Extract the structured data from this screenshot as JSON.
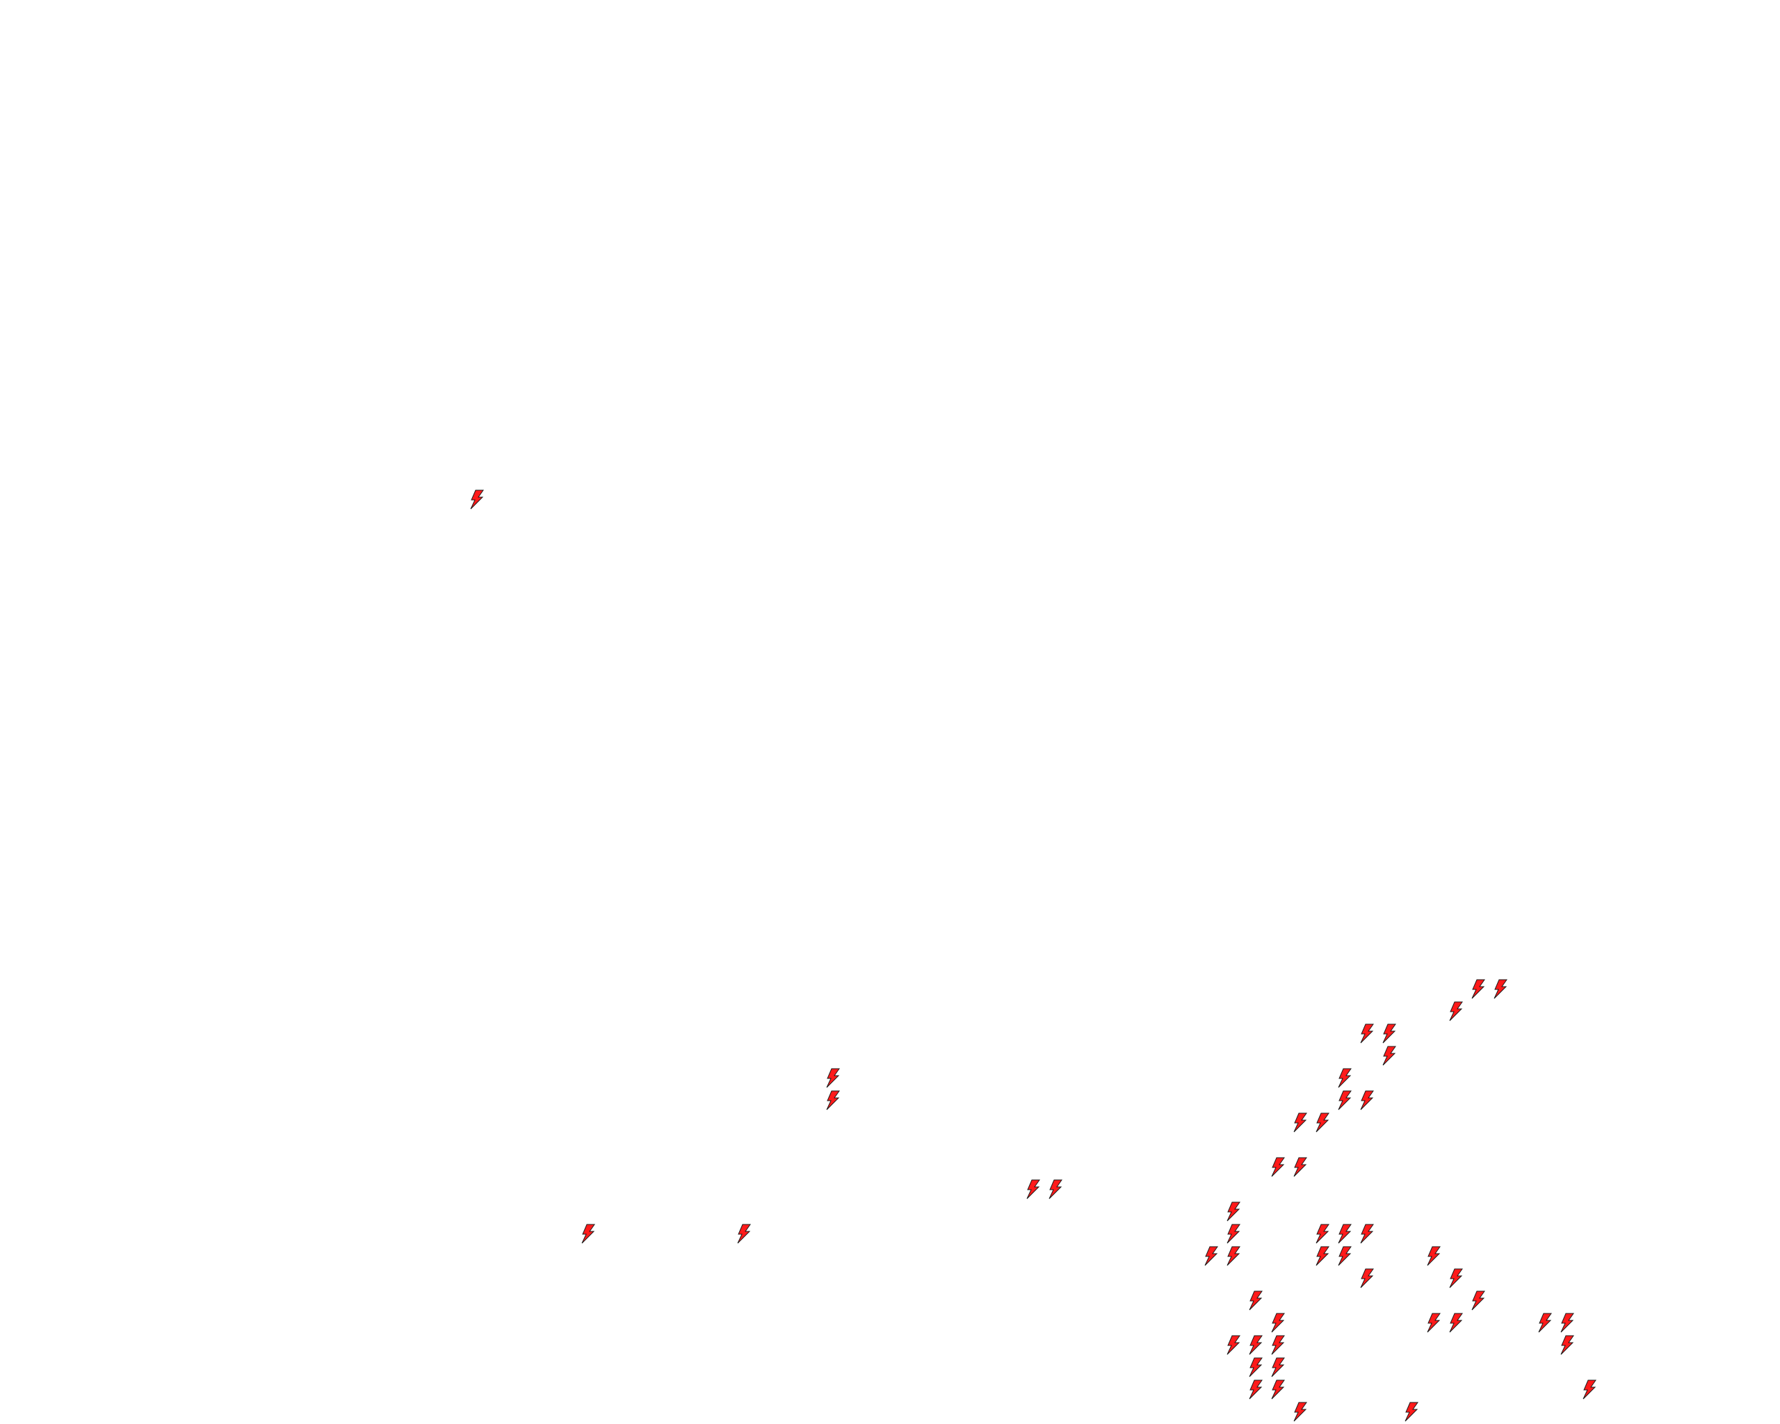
{
  "board": {
    "columns": 80,
    "rows": 64,
    "background": "#ffffff",
    "piece_icon": "lightning-bolt-icon",
    "piece_fill": "#ff1a1a",
    "piece_stroke": "#1a1a1a",
    "cells": [
      [
        21,
        22
      ],
      [
        66,
        44
      ],
      [
        67,
        44
      ],
      [
        65,
        45
      ],
      [
        61,
        46
      ],
      [
        62,
        46
      ],
      [
        62,
        47
      ],
      [
        37,
        48
      ],
      [
        60,
        48
      ],
      [
        37,
        49
      ],
      [
        60,
        49
      ],
      [
        61,
        49
      ],
      [
        58,
        50
      ],
      [
        59,
        50
      ],
      [
        57,
        52
      ],
      [
        58,
        52
      ],
      [
        46,
        53
      ],
      [
        47,
        53
      ],
      [
        55,
        54
      ],
      [
        26,
        55
      ],
      [
        33,
        55
      ],
      [
        55,
        55
      ],
      [
        59,
        55
      ],
      [
        60,
        55
      ],
      [
        61,
        55
      ],
      [
        54,
        56
      ],
      [
        55,
        56
      ],
      [
        59,
        56
      ],
      [
        60,
        56
      ],
      [
        64,
        56
      ],
      [
        61,
        57
      ],
      [
        65,
        57
      ],
      [
        56,
        58
      ],
      [
        66,
        58
      ],
      [
        57,
        59
      ],
      [
        64,
        59
      ],
      [
        65,
        59
      ],
      [
        69,
        59
      ],
      [
        70,
        59
      ],
      [
        55,
        60
      ],
      [
        56,
        60
      ],
      [
        57,
        60
      ],
      [
        70,
        60
      ],
      [
        56,
        61
      ],
      [
        57,
        61
      ],
      [
        56,
        62
      ],
      [
        57,
        62
      ],
      [
        71,
        62
      ],
      [
        58,
        63
      ],
      [
        63,
        63
      ]
    ]
  }
}
